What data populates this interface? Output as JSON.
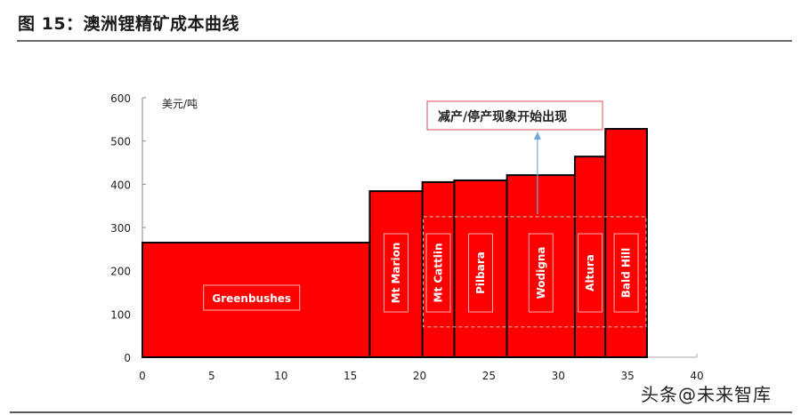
{
  "header": {
    "title": "图 15：澳洲锂精矿成本曲线"
  },
  "watermark": "头条@未来智库",
  "annotation": {
    "text": "减产/停产现象开始出现",
    "border_color": "#e05050",
    "arrow_color": "#6fa8dc"
  },
  "colors": {
    "bar_fill": "#ff0000",
    "bar_stroke": "#000000",
    "label_box": "#ffb3b3"
  },
  "chart_data": {
    "type": "bar",
    "subtype": "variable-width cost curve",
    "title": "澳洲锂精矿成本曲线",
    "xlabel": "",
    "ylabel": "美元/吨",
    "xlim": [
      0,
      40
    ],
    "ylim": [
      0,
      600
    ],
    "xticks": [
      0,
      5,
      10,
      15,
      20,
      25,
      30,
      35,
      40
    ],
    "yticks": [
      0,
      100,
      200,
      300,
      400,
      500,
      600
    ],
    "grid": false,
    "legend": null,
    "categories": [
      "Greenbushes",
      "Mt Marion",
      "Mt Cattlin",
      "Pilbara",
      "Wodigna",
      "Altura",
      "Bald Hill"
    ],
    "x_start": [
      0,
      16.4,
      20.2,
      22.5,
      26.3,
      31.2,
      33.4
    ],
    "x_end": [
      16.4,
      20.2,
      22.5,
      26.3,
      31.2,
      33.4,
      36.4
    ],
    "values": [
      265,
      384,
      405,
      409,
      421,
      464,
      528
    ],
    "annotations": [
      {
        "text": "减产/停产现象开始出现",
        "points_to_x": 28.5,
        "dashed_box_x": [
          20.2,
          36.4
        ],
        "dashed_box_y": [
          70,
          325
        ]
      }
    ]
  }
}
